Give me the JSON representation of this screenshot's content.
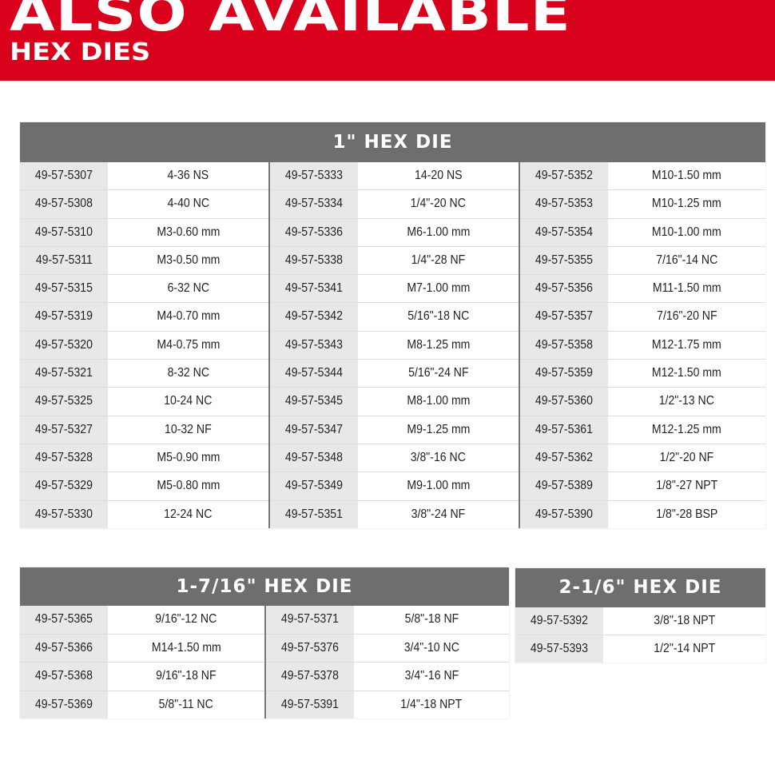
{
  "banner": {
    "title": "ALSO AVAILABLE",
    "subtitle": "HEX DIES",
    "color": "#d9001b"
  },
  "tables": [
    {
      "title": "1\" HEX DIE",
      "groups": [
        [
          [
            "49-57-5307",
            "4-36 NS"
          ],
          [
            "49-57-5308",
            "4-40 NC"
          ],
          [
            "49-57-5310",
            "M3-0.60 mm"
          ],
          [
            "49-57-5311",
            "M3-0.50 mm"
          ],
          [
            "49-57-5315",
            "6-32 NC"
          ],
          [
            "49-57-5319",
            "M4-0.70 mm"
          ],
          [
            "49-57-5320",
            "M4-0.75 mm"
          ],
          [
            "49-57-5321",
            "8-32 NC"
          ],
          [
            "49-57-5325",
            "10-24 NC"
          ],
          [
            "49-57-5327",
            "10-32 NF"
          ],
          [
            "49-57-5328",
            "M5-0.90 mm"
          ],
          [
            "49-57-5329",
            "M5-0.80 mm"
          ],
          [
            "49-57-5330",
            "12-24 NC"
          ]
        ],
        [
          [
            "49-57-5333",
            "14-20 NS"
          ],
          [
            "49-57-5334",
            "1/4\"-20 NC"
          ],
          [
            "49-57-5336",
            "M6-1.00 mm"
          ],
          [
            "49-57-5338",
            "1/4\"-28 NF"
          ],
          [
            "49-57-5341",
            "M7-1.00 mm"
          ],
          [
            "49-57-5342",
            "5/16\"-18 NC"
          ],
          [
            "49-57-5343",
            "M8-1.25 mm"
          ],
          [
            "49-57-5344",
            "5/16\"-24 NF"
          ],
          [
            "49-57-5345",
            "M8-1.00 mm"
          ],
          [
            "49-57-5347",
            "M9-1.25 mm"
          ],
          [
            "49-57-5348",
            "3/8\"-16 NC"
          ],
          [
            "49-57-5349",
            "M9-1.00 mm"
          ],
          [
            "49-57-5351",
            "3/8\"-24 NF"
          ]
        ],
        [
          [
            "49-57-5352",
            "M10-1.50 mm"
          ],
          [
            "49-57-5353",
            "M10-1.25 mm"
          ],
          [
            "49-57-5354",
            "M10-1.00 mm"
          ],
          [
            "49-57-5355",
            "7/16\"-14 NC"
          ],
          [
            "49-57-5356",
            "M11-1.50 mm"
          ],
          [
            "49-57-5357",
            "7/16\"-20 NF"
          ],
          [
            "49-57-5358",
            "M12-1.75 mm"
          ],
          [
            "49-57-5359",
            "M12-1.50 mm"
          ],
          [
            "49-57-5360",
            "1/2\"-13 NC"
          ],
          [
            "49-57-5361",
            "M12-1.25 mm"
          ],
          [
            "49-57-5362",
            "1/2\"-20 NF"
          ],
          [
            "49-57-5389",
            "1/8\"-27 NPT"
          ],
          [
            "49-57-5390",
            "1/8\"-28 BSP"
          ]
        ]
      ]
    },
    {
      "title": "1-7/16\" HEX DIE",
      "groups": [
        [
          [
            "49-57-5365",
            "9/16\"-12 NC"
          ],
          [
            "49-57-5366",
            "M14-1.50 mm"
          ],
          [
            "49-57-5368",
            "9/16\"-18 NF"
          ],
          [
            "49-57-5369",
            "5/8\"-11 NC"
          ]
        ],
        [
          [
            "49-57-5371",
            "5/8\"-18 NF"
          ],
          [
            "49-57-5376",
            "3/4\"-10 NC"
          ],
          [
            "49-57-5378",
            "3/4\"-16 NF"
          ],
          [
            "49-57-5391",
            "1/4\"-18 NPT"
          ]
        ]
      ]
    },
    {
      "title": "2-1/6\" HEX DIE",
      "groups": [
        [
          [
            "49-57-5392",
            "3/8\"-18 NPT"
          ],
          [
            "49-57-5393",
            "1/2\"-14 NPT"
          ]
        ]
      ]
    }
  ]
}
